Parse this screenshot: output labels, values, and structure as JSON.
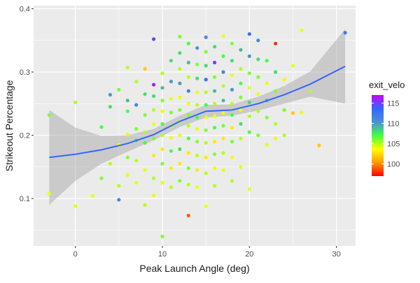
{
  "chart_data": {
    "type": "scatter",
    "title": "",
    "xlabel": "Peak Launch Angle (deg)",
    "ylabel": "Strikeout Percentage",
    "xlim": [
      -4.8,
      32.2
    ],
    "ylim": [
      0.025,
      0.405
    ],
    "x_ticks": [
      0,
      10,
      20,
      30
    ],
    "x_tick_labels": [
      "0",
      "10",
      "20",
      "30"
    ],
    "y_ticks": [
      0.1,
      0.2,
      0.3,
      0.4
    ],
    "y_tick_labels": [
      "0.1",
      "0.2",
      "0.3",
      "0.4"
    ],
    "grid": true,
    "background": "#ebebeb",
    "legend": {
      "title": "exit_velo",
      "placement": "right",
      "ticks": [
        100,
        105,
        110,
        115
      ],
      "tick_labels": [
        "100",
        "105",
        "110",
        "115"
      ],
      "range": [
        97,
        117
      ],
      "colors": [
        "#ff0000",
        "#ff9900",
        "#ffff00",
        "#44ff44",
        "#4a8fd4",
        "#3366ff",
        "#cc00ff"
      ]
    },
    "smooth": {
      "method": "loess",
      "color": "#3366ff",
      "ribbon_color": "#999999",
      "x": [
        -3,
        0,
        3,
        6,
        9,
        12,
        15,
        18,
        21,
        24,
        27,
        31
      ],
      "y": [
        0.165,
        0.17,
        0.177,
        0.187,
        0.201,
        0.222,
        0.238,
        0.24,
        0.25,
        0.264,
        0.281,
        0.309
      ],
      "lower": [
        0.09,
        0.128,
        0.155,
        0.174,
        0.192,
        0.213,
        0.228,
        0.231,
        0.239,
        0.25,
        0.261,
        0.25
      ],
      "upper": [
        0.24,
        0.212,
        0.199,
        0.2,
        0.21,
        0.231,
        0.248,
        0.249,
        0.261,
        0.278,
        0.301,
        0.368
      ]
    },
    "series": [
      {
        "x": [
          -3,
          -3,
          0,
          0,
          2,
          3,
          3,
          4,
          4,
          4,
          5,
          5,
          5,
          5,
          6,
          6,
          6,
          6,
          6,
          6,
          7,
          7,
          7,
          7,
          7,
          7,
          8,
          8,
          8,
          8,
          8,
          8,
          8,
          9,
          9,
          9,
          9,
          9,
          9,
          9,
          9,
          9,
          10,
          10,
          10,
          10,
          10,
          10,
          10,
          10,
          10,
          10,
          11,
          11,
          11,
          11,
          11,
          11,
          11,
          11,
          11,
          12,
          12,
          12,
          12,
          12,
          12,
          12,
          12,
          12,
          12,
          12,
          13,
          13,
          13,
          13,
          13,
          13,
          13,
          13,
          13,
          13,
          13,
          13,
          14,
          14,
          14,
          14,
          14,
          14,
          14,
          14,
          14,
          14,
          14,
          15,
          15,
          15,
          15,
          15,
          15,
          15,
          15,
          15,
          15,
          15,
          15,
          16,
          16,
          16,
          16,
          16,
          16,
          16,
          16,
          16,
          16,
          16,
          17,
          17,
          17,
          17,
          17,
          17,
          17,
          17,
          17,
          17,
          18,
          18,
          18,
          18,
          18,
          18,
          18,
          18,
          18,
          18,
          19,
          19,
          19,
          19,
          19,
          19,
          19,
          19,
          20,
          20,
          20,
          20,
          20,
          20,
          20,
          20,
          21,
          21,
          21,
          21,
          21,
          21,
          22,
          22,
          22,
          22,
          22,
          23,
          23,
          23,
          23,
          23,
          24,
          24,
          24,
          25,
          25,
          26,
          26,
          27,
          28,
          31
        ],
        "y": [
          0.232,
          0.108,
          0.252,
          0.088,
          0.104,
          0.213,
          0.132,
          0.264,
          0.245,
          0.155,
          0.272,
          0.185,
          0.12,
          0.098,
          0.307,
          0.255,
          0.238,
          0.201,
          0.165,
          0.137,
          0.285,
          0.248,
          0.21,
          0.192,
          0.16,
          0.125,
          0.305,
          0.265,
          0.232,
          0.205,
          0.188,
          0.145,
          0.09,
          0.352,
          0.28,
          0.262,
          0.24,
          0.218,
          0.195,
          0.168,
          0.132,
          0.105,
          0.298,
          0.275,
          0.255,
          0.238,
          0.218,
          0.2,
          0.178,
          0.155,
          0.125,
          0.04,
          0.318,
          0.285,
          0.258,
          0.236,
          0.214,
          0.196,
          0.175,
          0.148,
          0.118,
          0.356,
          0.33,
          0.305,
          0.282,
          0.26,
          0.24,
          0.222,
          0.2,
          0.178,
          0.155,
          0.128,
          0.345,
          0.315,
          0.292,
          0.27,
          0.25,
          0.232,
          0.215,
          0.195,
          0.172,
          0.148,
          0.122,
          0.073,
          0.338,
          0.312,
          0.29,
          0.268,
          0.248,
          0.228,
          0.21,
          0.19,
          0.168,
          0.145,
          0.118,
          0.355,
          0.332,
          0.31,
          0.288,
          0.268,
          0.248,
          0.228,
          0.208,
          0.188,
          0.165,
          0.14,
          0.088,
          0.34,
          0.315,
          0.292,
          0.27,
          0.25,
          0.23,
          0.212,
          0.19,
          0.17,
          0.148,
          0.12,
          0.357,
          0.325,
          0.3,
          0.278,
          0.255,
          0.235,
          0.215,
          0.195,
          0.172,
          0.145,
          0.345,
          0.318,
          0.295,
          0.272,
          0.25,
          0.232,
          0.212,
          0.19,
          0.165,
          0.128,
          0.335,
          0.305,
          0.282,
          0.26,
          0.24,
          0.218,
          0.195,
          0.15,
          0.36,
          0.325,
          0.298,
          0.275,
          0.252,
          0.23,
          0.205,
          0.115,
          0.35,
          0.32,
          0.292,
          0.265,
          0.238,
          0.2,
          0.318,
          0.282,
          0.255,
          0.228,
          0.185,
          0.345,
          0.3,
          0.27,
          0.218,
          0.195,
          0.288,
          0.24,
          0.2,
          0.31,
          0.235,
          0.366,
          0.236,
          0.27,
          0.184,
          0.362
        ],
        "color_values": [
          106,
          104,
          105,
          104,
          104,
          107,
          106,
          110,
          108,
          105,
          106,
          104,
          105,
          111,
          105,
          109,
          107,
          104,
          106,
          104,
          105,
          111,
          106,
          108,
          105,
          104,
          102,
          108,
          106,
          105,
          107,
          104,
          105,
          115,
          116,
          108,
          105,
          104,
          106,
          103,
          105,
          104,
          105,
          109,
          106,
          104,
          107,
          105,
          103,
          106,
          104,
          106,
          108,
          110,
          104,
          106,
          105,
          104,
          107,
          103,
          105,
          106,
          108,
          105,
          110,
          104,
          106,
          105,
          104,
          108,
          103,
          106,
          107,
          109,
          105,
          112,
          104,
          106,
          105,
          107,
          103,
          106,
          105,
          99,
          110,
          106,
          108,
          104,
          105,
          107,
          104,
          106,
          105,
          103,
          104,
          111,
          106,
          108,
          113,
          105,
          107,
          104,
          106,
          105,
          103,
          105,
          104,
          108,
          115,
          106,
          109,
          105,
          104,
          107,
          103,
          106,
          104,
          105,
          104,
          107,
          111,
          105,
          109,
          104,
          106,
          103,
          105,
          104,
          106,
          108,
          104,
          110,
          105,
          107,
          103,
          106,
          104,
          105,
          109,
          105,
          107,
          106,
          104,
          108,
          105,
          104,
          113,
          110,
          106,
          104,
          108,
          105,
          107,
          104,
          111,
          108,
          106,
          104,
          105,
          106,
          107,
          104,
          109,
          106,
          104,
          98,
          108,
          106,
          105,
          104,
          104,
          106,
          105,
          104,
          102,
          104,
          104,
          105,
          102,
          112
        ]
      }
    ]
  }
}
